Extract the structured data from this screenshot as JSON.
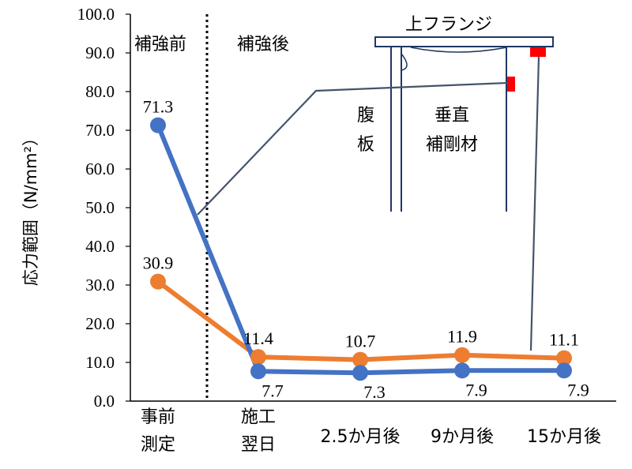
{
  "chart_data": {
    "type": "line",
    "ylabel": "応力範囲（N/mm²）",
    "ylim": [
      0,
      100
    ],
    "ytick_labels": [
      "0.0",
      "10.0",
      "20.0",
      "30.0",
      "40.0",
      "50.0",
      "60.0",
      "70.0",
      "80.0",
      "90.0",
      "100.0"
    ],
    "categories": [
      {
        "line1": "事前",
        "line2": "測定"
      },
      {
        "line1": "施工",
        "line2": "翌日"
      },
      {
        "line1": "2.5か月後",
        "line2": ""
      },
      {
        "line1": "9か月後",
        "line2": ""
      },
      {
        "line1": "15か月後",
        "line2": ""
      }
    ],
    "series": [
      {
        "color": "#4472C4",
        "values": [
          71.3,
          7.7,
          7.3,
          7.9,
          7.9
        ],
        "labels": [
          "71.3",
          "7.7",
          "7.3",
          "7.9",
          "7.9"
        ],
        "label_position": "mixed"
      },
      {
        "color": "#ED7D31",
        "values": [
          30.9,
          11.4,
          10.7,
          11.9,
          11.1
        ],
        "labels": [
          "30.9",
          "11.4",
          "10.7",
          "11.9",
          "11.1"
        ],
        "label_position": "above"
      }
    ],
    "region_labels": {
      "before": "補強前",
      "after": "補強後"
    },
    "divider": "dotted vertical line between 事前測定 and 施工翌日",
    "grid": false,
    "legend": "none"
  },
  "inset": {
    "flange_label": "上フランジ",
    "web_label_1": "腹",
    "web_label_2": "板",
    "stiffener_label_1": "垂直",
    "stiffener_label_2": "補剛材",
    "gauge_color": "#FF0000",
    "leader_color": "#44546A"
  }
}
